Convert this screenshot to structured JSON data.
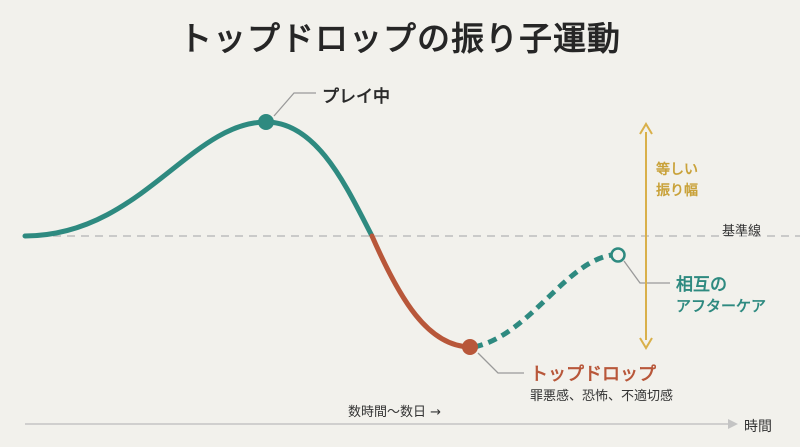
{
  "title": "トップドロップの振り子運動",
  "labels": {
    "play": "プレイ中",
    "baseline": "基準線",
    "amplitude_line1": "等しい",
    "amplitude_line2": "振り幅",
    "care_line1": "相互の",
    "care_line2": "アフターケア",
    "drop": "トップドロップ",
    "drop_sub": "罪悪感、恐怖、不適切感",
    "time_span": "数時間〜数日 →",
    "time_axis": "時間"
  },
  "colors": {
    "play_curve": "#2e8a80",
    "drop_curve": "#b8573a",
    "care_curve": "#2e8a80",
    "amplitude_arrow": "#d9b04a",
    "baseline": "#bdbdbd",
    "background": "#f2f1ec"
  }
}
